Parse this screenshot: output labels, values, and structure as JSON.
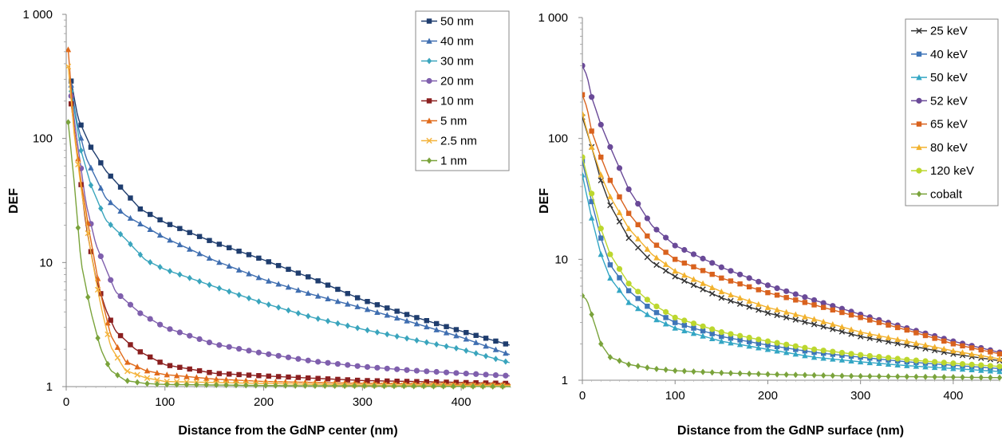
{
  "chart_data": [
    {
      "type": "line",
      "scale": "log-y",
      "xlabel": "Distance from the GdNP center (nm)",
      "ylabel": "DEF",
      "xlim": [
        0,
        450
      ],
      "ylim": [
        1,
        1000
      ],
      "x_ticks": [
        "0",
        "100",
        "200",
        "300",
        "400"
      ],
      "y_ticks": [
        "1",
        "10",
        "100",
        "1 000"
      ],
      "grid": false,
      "legend_position": "top-right",
      "series": [
        {
          "name": "50 nm",
          "color": "#1f3d6e",
          "marker": "square",
          "points": [
            [
              5,
              290
            ],
            [
              12,
              145
            ],
            [
              25,
              85
            ],
            [
              40,
              55
            ],
            [
              75,
              27
            ],
            [
              100,
              21
            ],
            [
              150,
              14.5
            ],
            [
              200,
              10.5
            ],
            [
              250,
              7.4
            ],
            [
              300,
              5
            ],
            [
              350,
              3.7
            ],
            [
              400,
              2.8
            ],
            [
              450,
              2.15
            ]
          ]
        },
        {
          "name": "40 nm",
          "color": "#3f6eb0",
          "marker": "triangle",
          "points": [
            [
              5,
              270
            ],
            [
              10,
              145
            ],
            [
              20,
              70
            ],
            [
              40,
              33
            ],
            [
              60,
              24
            ],
            [
              100,
              15.8
            ],
            [
              150,
              10.4
            ],
            [
              200,
              7.3
            ],
            [
              250,
              5.5
            ],
            [
              300,
              4.3
            ],
            [
              350,
              3.3
            ],
            [
              400,
              2.5
            ],
            [
              450,
              1.8
            ]
          ]
        },
        {
          "name": "30 nm",
          "color": "#3aa5bd",
          "marker": "diamond",
          "points": [
            [
              5,
              240
            ],
            [
              15,
              80
            ],
            [
              25,
              42
            ],
            [
              40,
              22
            ],
            [
              60,
              15.5
            ],
            [
              80,
              10.5
            ],
            [
              100,
              8.8
            ],
            [
              150,
              6.4
            ],
            [
              200,
              4.7
            ],
            [
              250,
              3.6
            ],
            [
              300,
              2.9
            ],
            [
              350,
              2.4
            ],
            [
              400,
              2.0
            ],
            [
              450,
              1.55
            ]
          ]
        },
        {
          "name": "20 nm",
          "color": "#7f5fad",
          "marker": "circle",
          "points": [
            [
              5,
              220
            ],
            [
              10,
              110
            ],
            [
              20,
              30
            ],
            [
              30,
              14
            ],
            [
              50,
              5.8
            ],
            [
              75,
              3.9
            ],
            [
              100,
              3.0
            ],
            [
              150,
              2.2
            ],
            [
              200,
              1.85
            ],
            [
              250,
              1.6
            ],
            [
              300,
              1.45
            ],
            [
              350,
              1.35
            ],
            [
              400,
              1.28
            ],
            [
              450,
              1.22
            ]
          ]
        },
        {
          "name": "10 nm",
          "color": "#8b1f1f",
          "marker": "square",
          "points": [
            [
              5,
              190
            ],
            [
              10,
              90
            ],
            [
              20,
              20
            ],
            [
              30,
              7.5
            ],
            [
              40,
              4.2
            ],
            [
              50,
              2.8
            ],
            [
              70,
              2.0
            ],
            [
              100,
              1.5
            ],
            [
              150,
              1.28
            ],
            [
              200,
              1.22
            ],
            [
              300,
              1.12
            ],
            [
              400,
              1.08
            ],
            [
              450,
              1.06
            ]
          ]
        },
        {
          "name": "5 nm",
          "color": "#e06a1a",
          "marker": "triangle",
          "points": [
            [
              2,
              520
            ],
            [
              8,
              120
            ],
            [
              15,
              45
            ],
            [
              25,
              15
            ],
            [
              35,
              5.5
            ],
            [
              45,
              2.6
            ],
            [
              60,
              1.6
            ],
            [
              80,
              1.35
            ],
            [
              100,
              1.25
            ],
            [
              150,
              1.15
            ],
            [
              200,
              1.1
            ],
            [
              300,
              1.06
            ],
            [
              450,
              1.04
            ]
          ]
        },
        {
          "name": "2.5 nm",
          "color": "#f4b33c",
          "marker": "x",
          "points": [
            [
              2,
              380
            ],
            [
              8,
              110
            ],
            [
              15,
              40
            ],
            [
              25,
              12
            ],
            [
              35,
              4.5
            ],
            [
              45,
              2.1
            ],
            [
              60,
              1.35
            ],
            [
              80,
              1.18
            ],
            [
              100,
              1.1
            ],
            [
              200,
              1.06
            ],
            [
              300,
              1.03
            ],
            [
              450,
              1.02
            ]
          ]
        },
        {
          "name": "1 nm",
          "color": "#7aa33b",
          "marker": "diamond",
          "points": [
            [
              2,
              135
            ],
            [
              8,
              45
            ],
            [
              15,
              10
            ],
            [
              25,
              4
            ],
            [
              35,
              2
            ],
            [
              45,
              1.35
            ],
            [
              60,
              1.12
            ],
            [
              80,
              1.06
            ],
            [
              100,
              1.04
            ],
            [
              200,
              1.02
            ],
            [
              450,
              1.0
            ]
          ]
        }
      ]
    },
    {
      "type": "line",
      "scale": "log-y",
      "xlabel": "Distance from the GdNP surface (nm)",
      "ylabel": "DEF",
      "xlim": [
        0,
        450
      ],
      "ylim": [
        1,
        1000
      ],
      "x_ticks": [
        "0",
        "100",
        "200",
        "300",
        "400"
      ],
      "y_ticks": [
        "1",
        "10",
        "100",
        "1 000"
      ],
      "grid": false,
      "legend_position": "top-right",
      "series": [
        {
          "name": "25 keV",
          "color": "#333333",
          "marker": "x",
          "points": [
            [
              0,
              150
            ],
            [
              10,
              85
            ],
            [
              20,
              45
            ],
            [
              30,
              28
            ],
            [
              50,
              15
            ],
            [
              75,
              9.5
            ],
            [
              100,
              7.2
            ],
            [
              150,
              4.8
            ],
            [
              200,
              3.6
            ],
            [
              250,
              2.9
            ],
            [
              300,
              2.3
            ],
            [
              350,
              1.95
            ],
            [
              400,
              1.65
            ],
            [
              450,
              1.45
            ]
          ]
        },
        {
          "name": "40 keV",
          "color": "#3f75b8",
          "marker": "square",
          "points": [
            [
              0,
              65
            ],
            [
              10,
              30
            ],
            [
              20,
              15
            ],
            [
              30,
              9
            ],
            [
              50,
              5.5
            ],
            [
              75,
              3.8
            ],
            [
              100,
              3.0
            ],
            [
              150,
              2.3
            ],
            [
              200,
              1.95
            ],
            [
              250,
              1.7
            ],
            [
              300,
              1.55
            ],
            [
              350,
              1.42
            ],
            [
              400,
              1.33
            ],
            [
              450,
              1.25
            ]
          ]
        },
        {
          "name": "50 keV",
          "color": "#33a6c4",
          "marker": "triangle",
          "points": [
            [
              0,
              50
            ],
            [
              10,
              22
            ],
            [
              20,
              11
            ],
            [
              30,
              7
            ],
            [
              50,
              4.4
            ],
            [
              75,
              3.3
            ],
            [
              100,
              2.7
            ],
            [
              150,
              2.1
            ],
            [
              200,
              1.8
            ],
            [
              250,
              1.55
            ],
            [
              300,
              1.42
            ],
            [
              350,
              1.32
            ],
            [
              400,
              1.25
            ],
            [
              450,
              1.18
            ]
          ]
        },
        {
          "name": "52 keV",
          "color": "#6a4a98",
          "marker": "circle",
          "points": [
            [
              0,
              400
            ],
            [
              5,
              330
            ],
            [
              10,
              220
            ],
            [
              20,
              130
            ],
            [
              30,
              85
            ],
            [
              50,
              38
            ],
            [
              75,
              19
            ],
            [
              100,
              13
            ],
            [
              150,
              8.6
            ],
            [
              200,
              6.1
            ],
            [
              250,
              4.6
            ],
            [
              300,
              3.5
            ],
            [
              350,
              2.7
            ],
            [
              400,
              2.1
            ],
            [
              450,
              1.7
            ]
          ]
        },
        {
          "name": "65 keV",
          "color": "#d9621e",
          "marker": "square",
          "points": [
            [
              0,
              230
            ],
            [
              5,
              180
            ],
            [
              10,
              115
            ],
            [
              20,
              70
            ],
            [
              30,
              45
            ],
            [
              50,
              24
            ],
            [
              75,
              14
            ],
            [
              100,
              10
            ],
            [
              150,
              7.0
            ],
            [
              200,
              5.3
            ],
            [
              250,
              4.2
            ],
            [
              300,
              3.3
            ],
            [
              350,
              2.6
            ],
            [
              400,
              2.0
            ],
            [
              450,
              1.65
            ]
          ]
        },
        {
          "name": "80 keV",
          "color": "#f2b22e",
          "marker": "triangle",
          "points": [
            [
              0,
              160
            ],
            [
              10,
              85
            ],
            [
              20,
              50
            ],
            [
              30,
              33
            ],
            [
              50,
              18
            ],
            [
              75,
              11
            ],
            [
              100,
              8.0
            ],
            [
              150,
              5.4
            ],
            [
              200,
              4.0
            ],
            [
              250,
              3.2
            ],
            [
              300,
              2.5
            ],
            [
              350,
              2.1
            ],
            [
              400,
              1.75
            ],
            [
              450,
              1.5
            ]
          ]
        },
        {
          "name": "120 keV",
          "color": "#bcd72e",
          "marker": "circle",
          "points": [
            [
              0,
              70
            ],
            [
              10,
              35
            ],
            [
              20,
              18
            ],
            [
              30,
              11
            ],
            [
              50,
              6.3
            ],
            [
              75,
              4.3
            ],
            [
              100,
              3.3
            ],
            [
              150,
              2.5
            ],
            [
              200,
              2.1
            ],
            [
              250,
              1.8
            ],
            [
              300,
              1.62
            ],
            [
              350,
              1.48
            ],
            [
              400,
              1.38
            ],
            [
              450,
              1.3
            ]
          ]
        },
        {
          "name": "cobalt",
          "color": "#7aa33b",
          "marker": "diamond",
          "points": [
            [
              0,
              5
            ],
            [
              5,
              4.6
            ],
            [
              10,
              3.5
            ],
            [
              20,
              2
            ],
            [
              30,
              1.55
            ],
            [
              50,
              1.35
            ],
            [
              75,
              1.25
            ],
            [
              100,
              1.2
            ],
            [
              150,
              1.15
            ],
            [
              200,
              1.12
            ],
            [
              300,
              1.08
            ],
            [
              450,
              1.05
            ]
          ]
        }
      ]
    }
  ]
}
